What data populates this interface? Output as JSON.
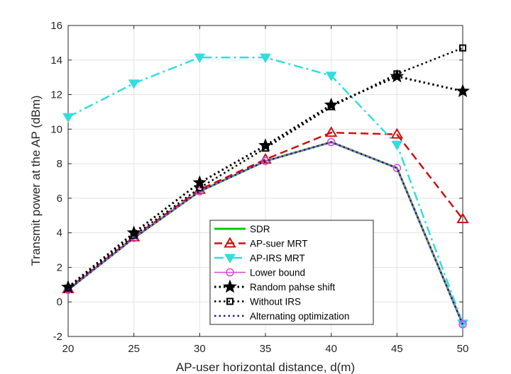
{
  "chart_data": {
    "type": "line",
    "xlabel": "AP-user horizontal distance, d(m)",
    "ylabel": "Transmit power at the AP (dBm)",
    "x": [
      20,
      25,
      30,
      35,
      40,
      45,
      50
    ],
    "xlim": [
      20,
      50
    ],
    "ylim": [
      -2,
      16
    ],
    "xticks": [
      20,
      25,
      30,
      35,
      40,
      45,
      50
    ],
    "yticks": [
      -2,
      0,
      2,
      4,
      6,
      8,
      10,
      12,
      14,
      16
    ],
    "grid": true,
    "legend_position": "bottom-center",
    "series": [
      {
        "name": "SDR",
        "values": [
          0.7,
          3.7,
          6.4,
          8.15,
          9.25,
          7.75,
          -1.3
        ],
        "color": "#00cc00",
        "dash": "solid",
        "marker": "none"
      },
      {
        "name": "AP-suer MRT",
        "values": [
          0.75,
          3.75,
          6.5,
          8.25,
          9.8,
          9.7,
          4.8
        ],
        "color": "#cc1111",
        "dash": "dash",
        "marker": "triangle-up"
      },
      {
        "name": "AP-IRS MRT",
        "values": [
          10.7,
          12.65,
          14.15,
          14.15,
          13.1,
          9.1,
          -1.25
        ],
        "color": "#33dddd",
        "dash": "dashdot",
        "marker": "triangle-down"
      },
      {
        "name": "Lower bound",
        "values": [
          0.7,
          3.7,
          6.4,
          8.15,
          9.25,
          7.75,
          -1.3
        ],
        "color": "#dd44dd",
        "dash": "solid",
        "marker": "circle"
      },
      {
        "name": "Random pahse shift",
        "values": [
          0.85,
          4.0,
          6.9,
          9.05,
          11.4,
          13.05,
          12.2
        ],
        "color": "#000000",
        "dash": "dot",
        "marker": "star"
      },
      {
        "name": "Without IRS",
        "values": [
          0.8,
          3.85,
          6.6,
          8.9,
          11.3,
          13.2,
          14.7
        ],
        "color": "#000000",
        "dash": "dot",
        "marker": "square"
      },
      {
        "name": "Alternating optimization",
        "values": [
          0.7,
          3.7,
          6.4,
          8.15,
          9.25,
          7.75,
          -1.3
        ],
        "color": "#1a1a99",
        "dash": "dot",
        "marker": "none"
      }
    ]
  }
}
